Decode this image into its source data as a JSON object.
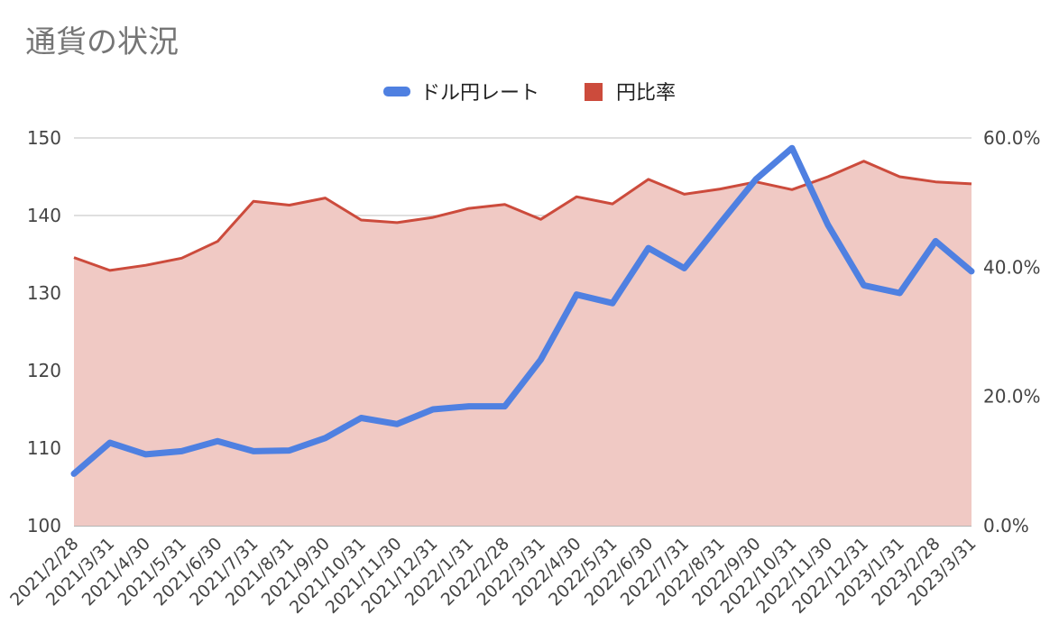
{
  "chart_data": {
    "type": "line",
    "title": "通貨の状況",
    "categories": [
      "2021/2/28",
      "2021/3/31",
      "2021/4/30",
      "2021/5/31",
      "2021/6/30",
      "2021/7/31",
      "2021/8/31",
      "2021/9/30",
      "2021/10/31",
      "2021/11/30",
      "2021/12/31",
      "2022/1/31",
      "2022/2/28",
      "2022/3/31",
      "2022/4/30",
      "2022/5/31",
      "2022/6/30",
      "2022/7/31",
      "2022/8/31",
      "2022/9/30",
      "2022/10/31",
      "2022/11/30",
      "2022/12/31",
      "2023/1/31",
      "2023/2/28",
      "2023/3/31"
    ],
    "series": [
      {
        "name": "ドル円レート",
        "type": "line",
        "axis": "left",
        "color": "#4f80e1",
        "values": [
          106.7,
          110.7,
          109.2,
          109.6,
          110.9,
          109.6,
          109.7,
          111.3,
          113.9,
          113.1,
          115.0,
          115.4,
          115.4,
          121.4,
          129.8,
          128.7,
          135.8,
          133.2,
          139.0,
          144.7,
          148.7,
          138.8,
          131.0,
          130.0,
          136.7,
          132.8
        ]
      },
      {
        "name": "円比率",
        "type": "area",
        "axis": "right",
        "color": "#cc4b3c",
        "fill": "#f0c9c4",
        "values": [
          41.5,
          39.5,
          40.3,
          41.4,
          44.0,
          50.2,
          49.6,
          50.7,
          47.3,
          46.9,
          47.7,
          49.1,
          49.7,
          47.4,
          50.9,
          49.8,
          53.6,
          51.3,
          52.1,
          53.2,
          52.0,
          54.0,
          56.4,
          54.0,
          53.2,
          52.9
        ]
      }
    ],
    "y_left": {
      "min": 100,
      "max": 150,
      "ticks": [
        "100",
        "110",
        "120",
        "130",
        "140",
        "150"
      ]
    },
    "y_right": {
      "min": 0,
      "max": 60,
      "ticks": [
        "0.0%",
        "20.0%",
        "40.0%",
        "60.0%"
      ]
    },
    "grid": true,
    "legend": "top-center"
  }
}
